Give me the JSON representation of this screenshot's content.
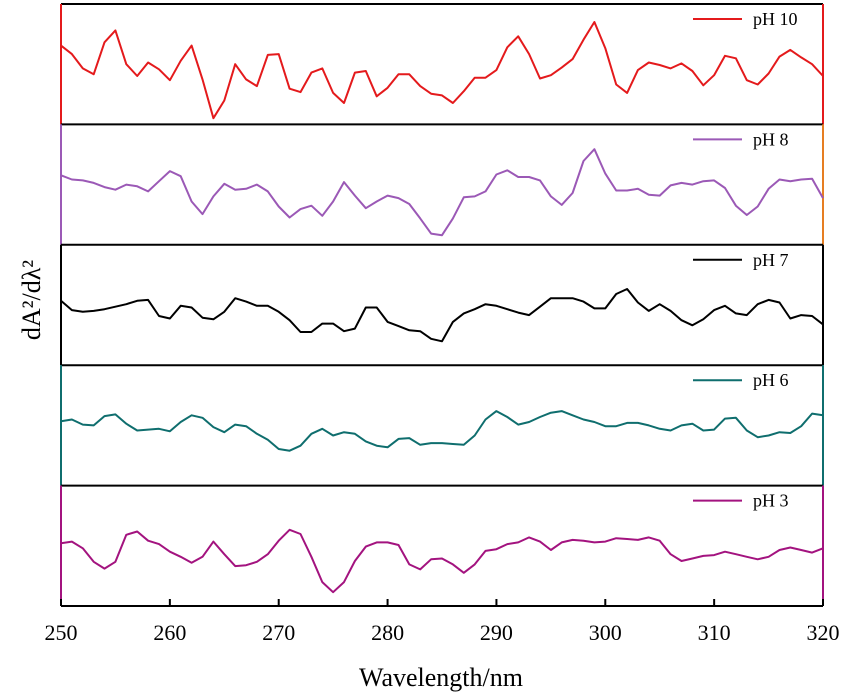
{
  "chart_data": {
    "type": "line",
    "xlabel": "Wavelength/nm",
    "ylabel": "dA²/dλ²",
    "xlim": [
      250,
      320
    ],
    "x_ticks": [
      "250",
      "260",
      "270",
      "280",
      "290",
      "300",
      "310",
      "320"
    ],
    "y_ticks": "none",
    "grid": false,
    "legend_position": "top-right of each panel",
    "x": [
      250,
      251,
      252,
      253,
      254,
      255,
      256,
      257,
      258,
      259,
      260,
      261,
      262,
      263,
      264,
      265,
      266,
      267,
      268,
      269,
      270,
      271,
      272,
      273,
      274,
      275,
      276,
      277,
      278,
      279,
      280,
      281,
      282,
      283,
      284,
      285,
      286,
      287,
      288,
      289,
      290,
      291,
      292,
      293,
      294,
      295,
      296,
      297,
      298,
      299,
      300,
      301,
      302,
      303,
      304,
      305,
      306,
      307,
      308,
      309,
      310,
      311,
      312,
      313,
      314,
      315,
      316,
      317,
      318,
      319,
      320
    ],
    "series": [
      {
        "name": "pH 10",
        "color": "#e41a1c",
        "values": [
          0.72,
          0.62,
          0.45,
          0.38,
          0.76,
          0.9,
          0.5,
          0.36,
          0.52,
          0.44,
          0.31,
          0.54,
          0.72,
          0.32,
          -0.14,
          0.07,
          0.5,
          0.32,
          0.24,
          0.61,
          0.62,
          0.21,
          0.17,
          0.4,
          0.45,
          0.16,
          0.04,
          0.4,
          0.42,
          0.12,
          0.22,
          0.38,
          0.38,
          0.24,
          0.15,
          0.13,
          0.04,
          0.18,
          0.34,
          0.34,
          0.43,
          0.7,
          0.83,
          0.62,
          0.33,
          0.37,
          0.46,
          0.56,
          0.79,
          1.0,
          0.69,
          0.26,
          0.16,
          0.43,
          0.52,
          0.49,
          0.45,
          0.51,
          0.42,
          0.25,
          0.37,
          0.6,
          0.57,
          0.31,
          0.26,
          0.39,
          0.59,
          0.67,
          0.58,
          0.5,
          0.36
        ]
      },
      {
        "name": "pH 8",
        "color": "#9b59b6",
        "values": [
          0.61,
          0.56,
          0.55,
          0.52,
          0.47,
          0.44,
          0.5,
          0.48,
          0.42,
          0.54,
          0.66,
          0.6,
          0.3,
          0.15,
          0.36,
          0.51,
          0.44,
          0.45,
          0.5,
          0.42,
          0.24,
          0.11,
          0.21,
          0.25,
          0.13,
          0.3,
          0.53,
          0.37,
          0.22,
          0.3,
          0.37,
          0.34,
          0.27,
          0.1,
          -0.08,
          -0.1,
          0.1,
          0.35,
          0.36,
          0.42,
          0.62,
          0.67,
          0.59,
          0.59,
          0.55,
          0.36,
          0.26,
          0.4,
          0.78,
          0.92,
          0.63,
          0.43,
          0.43,
          0.45,
          0.38,
          0.37,
          0.49,
          0.52,
          0.5,
          0.54,
          0.55,
          0.46,
          0.25,
          0.14,
          0.24,
          0.45,
          0.56,
          0.54,
          0.56,
          0.57,
          0.34
        ]
      },
      {
        "name": "pH 7",
        "color": "#000000",
        "values": [
          0.55,
          0.44,
          0.42,
          0.43,
          0.45,
          0.48,
          0.51,
          0.55,
          0.56,
          0.37,
          0.34,
          0.49,
          0.47,
          0.35,
          0.33,
          0.42,
          0.58,
          0.54,
          0.49,
          0.49,
          0.42,
          0.32,
          0.18,
          0.18,
          0.28,
          0.28,
          0.19,
          0.22,
          0.47,
          0.47,
          0.3,
          0.25,
          0.2,
          0.19,
          0.1,
          0.07,
          0.3,
          0.4,
          0.45,
          0.51,
          0.49,
          0.45,
          0.41,
          0.38,
          0.48,
          0.58,
          0.58,
          0.58,
          0.54,
          0.46,
          0.46,
          0.63,
          0.69,
          0.53,
          0.43,
          0.51,
          0.43,
          0.32,
          0.26,
          0.33,
          0.44,
          0.49,
          0.4,
          0.38,
          0.51,
          0.56,
          0.53,
          0.34,
          0.38,
          0.37,
          0.27
        ]
      },
      {
        "name": "pH 6",
        "color": "#0f6e6e",
        "values": [
          0.55,
          0.57,
          0.51,
          0.5,
          0.61,
          0.63,
          0.52,
          0.44,
          0.45,
          0.46,
          0.43,
          0.54,
          0.62,
          0.59,
          0.48,
          0.42,
          0.51,
          0.49,
          0.4,
          0.33,
          0.22,
          0.2,
          0.26,
          0.4,
          0.46,
          0.38,
          0.42,
          0.4,
          0.31,
          0.26,
          0.24,
          0.34,
          0.35,
          0.27,
          0.29,
          0.29,
          0.28,
          0.27,
          0.38,
          0.57,
          0.67,
          0.6,
          0.51,
          0.54,
          0.6,
          0.65,
          0.67,
          0.62,
          0.57,
          0.54,
          0.49,
          0.49,
          0.53,
          0.53,
          0.5,
          0.46,
          0.44,
          0.5,
          0.52,
          0.44,
          0.45,
          0.58,
          0.59,
          0.44,
          0.36,
          0.38,
          0.42,
          0.41,
          0.49,
          0.64,
          0.62
        ]
      },
      {
        "name": "pH 3",
        "color": "#a3137f",
        "values": [
          0.53,
          0.55,
          0.47,
          0.31,
          0.23,
          0.31,
          0.63,
          0.67,
          0.56,
          0.52,
          0.43,
          0.37,
          0.3,
          0.37,
          0.55,
          0.4,
          0.26,
          0.27,
          0.31,
          0.4,
          0.56,
          0.69,
          0.64,
          0.37,
          0.07,
          -0.05,
          0.07,
          0.32,
          0.49,
          0.54,
          0.54,
          0.51,
          0.28,
          0.22,
          0.34,
          0.35,
          0.28,
          0.18,
          0.28,
          0.44,
          0.46,
          0.52,
          0.54,
          0.6,
          0.55,
          0.45,
          0.54,
          0.57,
          0.56,
          0.54,
          0.55,
          0.59,
          0.58,
          0.57,
          0.6,
          0.56,
          0.4,
          0.32,
          0.35,
          0.38,
          0.39,
          0.43,
          0.4,
          0.37,
          0.34,
          0.37,
          0.45,
          0.48,
          0.45,
          0.42,
          0.47
        ]
      }
    ]
  }
}
